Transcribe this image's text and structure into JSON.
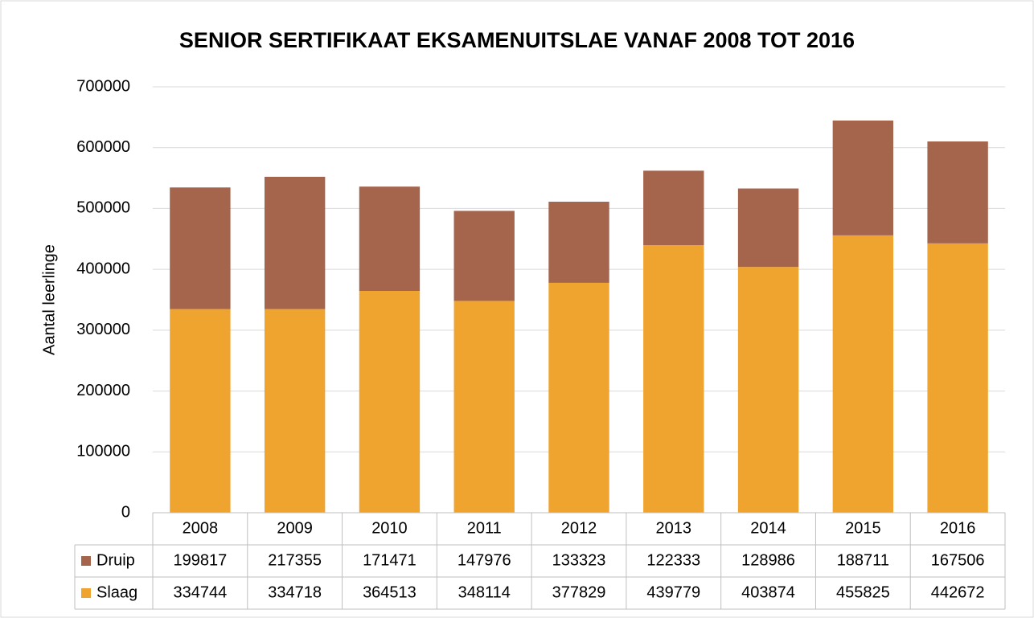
{
  "chart_data": {
    "type": "stacked_bar",
    "title": "SENIOR SERTIFIKAAT EKSAMENUITSLAE VANAF 2008 TOT 2016",
    "y_label": "Aantal leerlinge",
    "categories": [
      "2008",
      "2009",
      "2010",
      "2011",
      "2012",
      "2013",
      "2014",
      "2015",
      "2016"
    ],
    "series": [
      {
        "name": "Druip",
        "color": "#a5654d",
        "values": [
          199817,
          217355,
          171471,
          147976,
          133323,
          122333,
          128986,
          188711,
          167506
        ]
      },
      {
        "name": "Slaag",
        "color": "#f0a430",
        "values": [
          334744,
          334718,
          364513,
          348114,
          377829,
          439779,
          403874,
          455825,
          442672
        ]
      }
    ],
    "ylim": [
      0,
      700000
    ],
    "yticks": [
      0,
      100000,
      200000,
      300000,
      400000,
      500000,
      600000,
      700000
    ],
    "grid": true
  }
}
